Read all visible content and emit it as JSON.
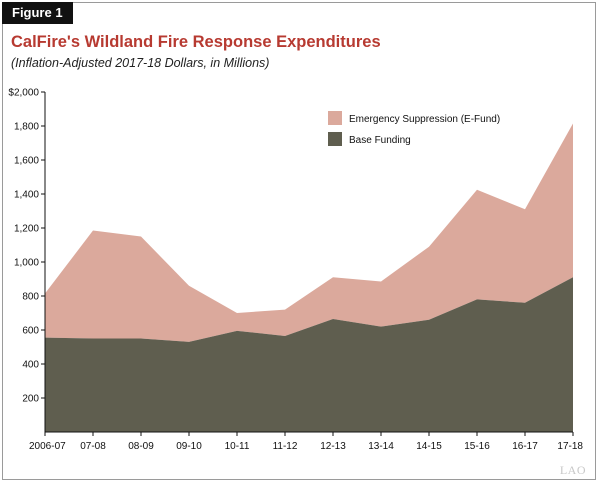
{
  "figure_label": "Figure 1",
  "watermark": "LAO",
  "colors": {
    "emergency": "#dba99c",
    "base": "#5f5e4f",
    "title": "#b73a31"
  },
  "chart_data": {
    "type": "area",
    "stacked": true,
    "title": "CalFire's Wildland Fire Response Expenditures",
    "subtitle": "(Inflation-Adjusted 2017-18 Dollars, in Millions)",
    "categories": [
      "2006-07",
      "07-08",
      "08-09",
      "09-10",
      "10-11",
      "11-12",
      "12-13",
      "13-14",
      "14-15",
      "15-16",
      "16-17",
      "17-18"
    ],
    "series": [
      {
        "name": "Base Funding",
        "values": [
          555,
          550,
          550,
          530,
          595,
          565,
          665,
          620,
          660,
          780,
          760,
          910
        ]
      },
      {
        "name": "Emergency Suppression (E-Fund)",
        "values": [
          260,
          635,
          600,
          330,
          105,
          155,
          245,
          265,
          430,
          645,
          550,
          905
        ]
      }
    ],
    "ylim": [
      0,
      2000
    ],
    "yticks": [
      200,
      400,
      600,
      800,
      1000,
      1200,
      1400,
      1600,
      1800,
      2000
    ],
    "ytick_labels": [
      "200",
      "400",
      "600",
      "800",
      "1,000",
      "1,200",
      "1,400",
      "1,600",
      "1,800",
      "$2,000"
    ],
    "legend_position": "top-right",
    "grid": false
  }
}
